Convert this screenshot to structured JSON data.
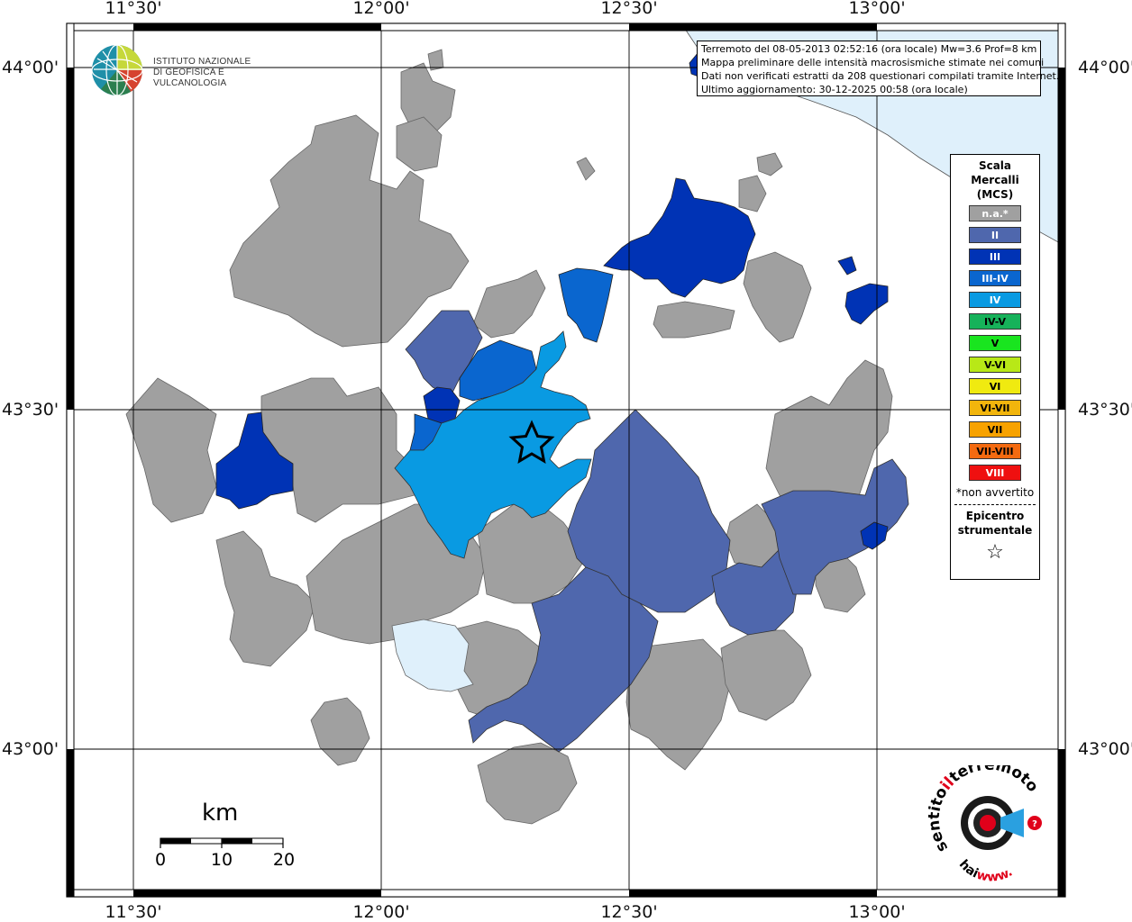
{
  "ticks": {
    "lon": [
      "11°30'",
      "12°00'",
      "12°30'",
      "13°00'"
    ],
    "lat": [
      "44°00'",
      "43°30'",
      "43°00'"
    ]
  },
  "logo": {
    "line1": "ISTITUTO NAZIONALE",
    "line2": "DI GEOFISICA E VULCANOLOGIA"
  },
  "info": {
    "line1": "Terremoto del 08-05-2013 02:52:16 (ora locale) Mw=3.6 Prof=8 km",
    "line2": "Mappa preliminare delle intensità macrosismiche stimate nei comuni",
    "line3": "Dati non verificati estratti da 208 questionari compilati tramite Internet.",
    "line4": "Ultimo aggiornamento: 30-12-2025 00:58 (ora locale)"
  },
  "legend": {
    "title1": "Scala",
    "title2": "Mercalli",
    "title3": "(MCS)",
    "items": [
      {
        "label": "n.a.*",
        "color": "#a0a0a0",
        "text_color": "#ffffff"
      },
      {
        "label": "II",
        "color": "#4f67ad",
        "text_color": "#ffffff"
      },
      {
        "label": "III",
        "color": "#0033b5",
        "text_color": "#ffffff"
      },
      {
        "label": "III-IV",
        "color": "#0a66cf",
        "text_color": "#ffffff"
      },
      {
        "label": "IV",
        "color": "#099ae2",
        "text_color": "#ffffff"
      },
      {
        "label": "IV-V",
        "color": "#16b25a",
        "text_color": "#000000"
      },
      {
        "label": "V",
        "color": "#19e51f",
        "text_color": "#000000"
      },
      {
        "label": "V-VI",
        "color": "#b8e817",
        "text_color": "#000000"
      },
      {
        "label": "VI",
        "color": "#f0ea10",
        "text_color": "#000000"
      },
      {
        "label": "VI-VII",
        "color": "#f2b50c",
        "text_color": "#000000"
      },
      {
        "label": "VII",
        "color": "#f7a200",
        "text_color": "#000000"
      },
      {
        "label": "VII-VIII",
        "color": "#f46a10",
        "text_color": "#000000"
      },
      {
        "label": "VIII",
        "color": "#ef1010",
        "text_color": "#ffffff"
      }
    ],
    "note": "*non avvertito",
    "epi1": "Epicentro",
    "epi2": "strumentale",
    "epi_symbol": "☆"
  },
  "scalebar": {
    "unit": "km",
    "labels": [
      "0",
      "10",
      "20"
    ]
  },
  "hst": {
    "top": "terremoto.it",
    "left": "hai",
    "mid": "sentito",
    "il": "il",
    "www": "www."
  },
  "colors": {
    "na": "#a0a0a0",
    "II": "#4f67ad",
    "III": "#0033b5",
    "III-IV": "#0a66cf",
    "IV": "#099ae2",
    "sea": "#dff0fb"
  }
}
